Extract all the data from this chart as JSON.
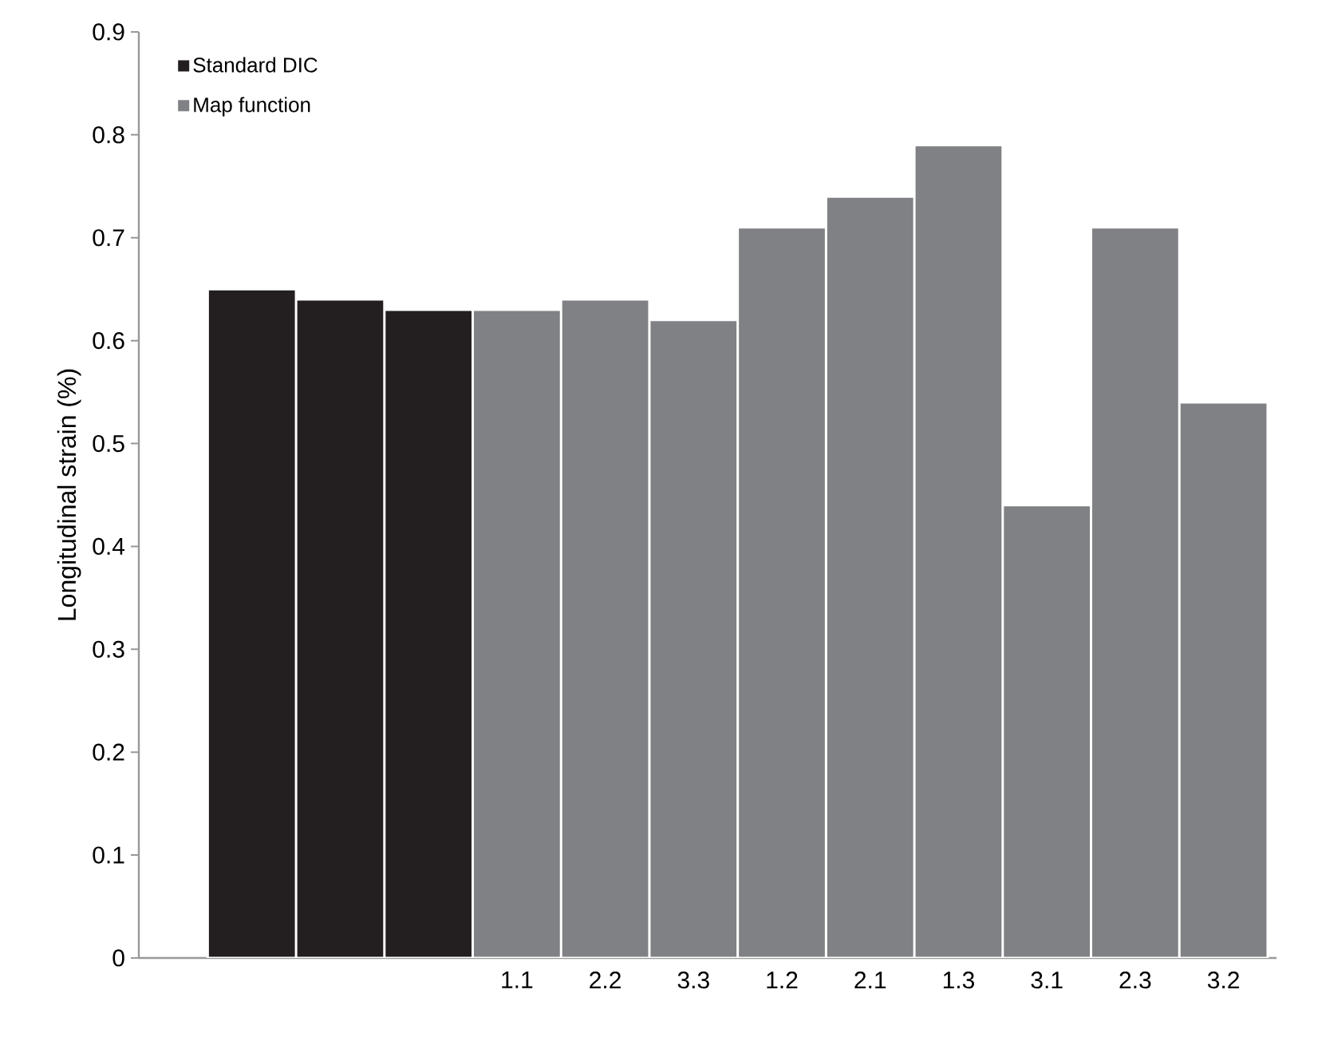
{
  "chart_data": {
    "type": "bar",
    "ylabel": "Longitudinal strain (%)",
    "categories": [
      null,
      null,
      null,
      "1.1",
      "2.2",
      "3.3",
      "1.2",
      "2.1",
      "1.3",
      "3.1",
      "2.3",
      "3.2"
    ],
    "series": [
      {
        "name": "Standard DIC",
        "color": "#231f20",
        "values": [
          0.65,
          0.64,
          0.63,
          null,
          null,
          null,
          null,
          null,
          null,
          null,
          null,
          null
        ]
      },
      {
        "name": "Map function",
        "color": "#808184",
        "values": [
          null,
          null,
          null,
          0.63,
          0.64,
          0.62,
          0.71,
          0.74,
          0.79,
          0.44,
          0.71,
          0.54
        ]
      }
    ],
    "ylim": [
      0,
      0.9
    ],
    "yticks": [
      0,
      0.1,
      0.2,
      0.3,
      0.4,
      0.5,
      0.6,
      0.7,
      0.8,
      0.9
    ],
    "grid": false,
    "legend": "top left"
  }
}
